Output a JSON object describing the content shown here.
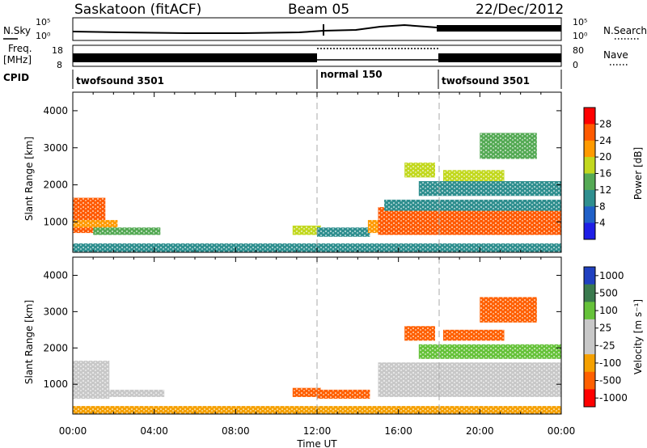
{
  "header": {
    "station": "Saskatoon (fitACF)",
    "beam": "Beam 05",
    "date": "22/Dec/2012"
  },
  "strip_labels": {
    "nsky": "N.Sky",
    "freq_line1": "Freq.",
    "freq_line2": "[MHz]",
    "cpid": "CPID",
    "nsearch": "N.Search",
    "nave": "Nave",
    "noise_ticks": [
      "10^5",
      "10^0"
    ],
    "freq_ticks": [
      "18",
      "8"
    ],
    "nave_ticks": [
      "80",
      "0"
    ]
  },
  "cpid_segments": [
    {
      "label": "twofsound 3501",
      "start_hour": 0
    },
    {
      "label": "normal 150",
      "start_hour": 12
    },
    {
      "label": "twofsound 3501",
      "start_hour": 18
    }
  ],
  "colors": {
    "power_scale": [
      "#1e1ee6",
      "#2060c8",
      "#2f8f8f",
      "#55aa55",
      "#c2d81e",
      "#ff9a00",
      "#ff5a00",
      "#ff0000"
    ],
    "velocity_scale": [
      "#2040c0",
      "#3a7a4e",
      "#66c23a",
      "#c8c8c8",
      "#c8c8c8",
      "#f5a000",
      "#ff6000",
      "#ff0000"
    ]
  },
  "chart_data": [
    {
      "type": "heatmap",
      "name": "power",
      "xlabel": "Time UT",
      "ylabel": "Slant Range [km]",
      "colorbar_label": "Power [dB]",
      "colorbar_ticks": [
        "28",
        "24",
        "20",
        "16",
        "12",
        "8",
        "4"
      ],
      "colorbar_range": [
        0,
        30
      ],
      "x_ticks": [
        "00:00",
        "04:00",
        "08:00",
        "12:00",
        "16:00",
        "20:00",
        "00:00"
      ],
      "xlim_hours": [
        0,
        24
      ],
      "y_ticks": [
        1000,
        2000,
        3000,
        4000
      ],
      "ylim": [
        180,
        4500
      ],
      "regions": [
        {
          "x0": 0.0,
          "x1": 1.6,
          "y0": 700,
          "y1": 1650,
          "value": 26
        },
        {
          "x0": 0.0,
          "x1": 2.2,
          "y0": 850,
          "y1": 1050,
          "value": 20
        },
        {
          "x0": 1.0,
          "x1": 4.3,
          "y0": 650,
          "y1": 850,
          "value": 14
        },
        {
          "x0": 0.0,
          "x1": 24.0,
          "y0": 180,
          "y1": 420,
          "value": 8
        },
        {
          "x0": 10.8,
          "x1": 12.2,
          "y0": 650,
          "y1": 900,
          "value": 18
        },
        {
          "x0": 12.0,
          "x1": 14.6,
          "y0": 600,
          "y1": 850,
          "value": 10
        },
        {
          "x0": 14.5,
          "x1": 15.2,
          "y0": 700,
          "y1": 1050,
          "value": 22
        },
        {
          "x0": 15.0,
          "x1": 24.0,
          "y0": 650,
          "y1": 1400,
          "value": 24
        },
        {
          "x0": 15.3,
          "x1": 24.0,
          "y0": 1300,
          "y1": 1600,
          "value": 10
        },
        {
          "x0": 16.3,
          "x1": 17.8,
          "y0": 2200,
          "y1": 2600,
          "value": 18
        },
        {
          "x0": 18.2,
          "x1": 21.2,
          "y0": 2000,
          "y1": 2400,
          "value": 18
        },
        {
          "x0": 20.0,
          "x1": 22.8,
          "y0": 2700,
          "y1": 3400,
          "value": 14
        },
        {
          "x0": 17.0,
          "x1": 24.0,
          "y0": 1700,
          "y1": 2100,
          "value": 8
        }
      ]
    },
    {
      "type": "heatmap",
      "name": "velocity",
      "xlabel": "Time UT",
      "ylabel": "Slant Range [km]",
      "colorbar_label": "Velocity [m s⁻¹]",
      "colorbar_ticks": [
        "1000",
        "500",
        "100",
        "25",
        "-25",
        "-100",
        "-500",
        "-1000"
      ],
      "x_ticks": [
        "00:00",
        "04:00",
        "08:00",
        "12:00",
        "16:00",
        "20:00",
        "00:00"
      ],
      "xlim_hours": [
        0,
        24
      ],
      "y_ticks": [
        1000,
        2000,
        3000,
        4000
      ],
      "ylim": [
        180,
        4500
      ],
      "regions": [
        {
          "x0": 0.0,
          "x1": 1.8,
          "y0": 600,
          "y1": 1650,
          "value": 0
        },
        {
          "x0": 1.8,
          "x1": 4.5,
          "y0": 650,
          "y1": 850,
          "value": 0
        },
        {
          "x0": 0.0,
          "x1": 24.0,
          "y0": 180,
          "y1": 400,
          "value": -60
        },
        {
          "x0": 10.8,
          "x1": 12.2,
          "y0": 650,
          "y1": 900,
          "value": -100
        },
        {
          "x0": 12.0,
          "x1": 14.6,
          "y0": 600,
          "y1": 850,
          "value": -100
        },
        {
          "x0": 15.0,
          "x1": 24.0,
          "y0": 650,
          "y1": 1600,
          "value": 0
        },
        {
          "x0": 16.3,
          "x1": 17.8,
          "y0": 2200,
          "y1": 2600,
          "value": -300
        },
        {
          "x0": 18.2,
          "x1": 21.2,
          "y0": 2200,
          "y1": 2500,
          "value": -300
        },
        {
          "x0": 20.0,
          "x1": 22.8,
          "y0": 2700,
          "y1": 3400,
          "value": -300
        },
        {
          "x0": 17.0,
          "x1": 24.0,
          "y0": 1700,
          "y1": 2100,
          "value": 50
        }
      ]
    }
  ]
}
